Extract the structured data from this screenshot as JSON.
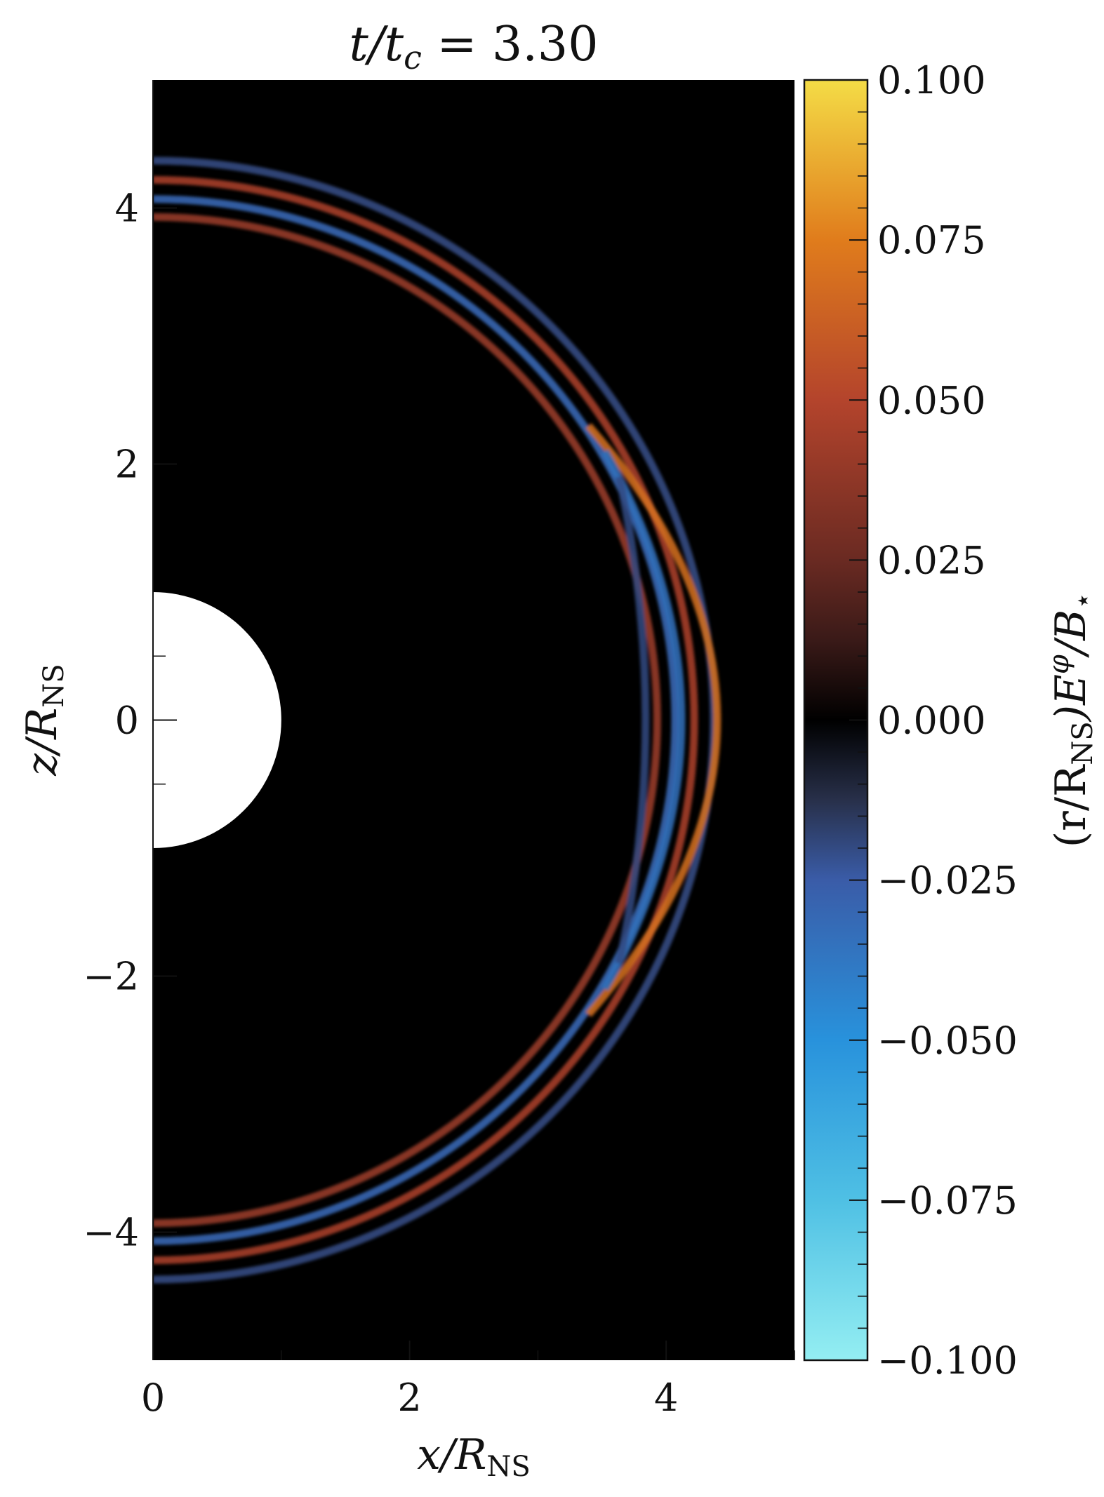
{
  "chart_data": {
    "type": "heatmap",
    "title": "t/t_c = 3.30",
    "title_parts": {
      "lhs": "t/t",
      "sub": "c",
      "rhs": " = 3.30"
    },
    "xlabel": "x/R_NS",
    "xlabel_parts": {
      "var": "x/R",
      "sub": "NS"
    },
    "ylabel": "z/R_NS",
    "ylabel_parts": {
      "var": "z/R",
      "sub": "NS"
    },
    "xlim": [
      0,
      5
    ],
    "ylim": [
      -5,
      5
    ],
    "xticks": [
      0,
      2,
      4
    ],
    "xtick_labels": [
      "0",
      "2",
      "4"
    ],
    "yticks": [
      4,
      2,
      0,
      -2,
      -4
    ],
    "ytick_labels": [
      "4",
      "2",
      "0",
      "−2",
      "−4"
    ],
    "star": {
      "radius": 1.0,
      "color": "#ffffff"
    },
    "colorbar": {
      "label": "(r/R_NS) E^φ / B_⋆",
      "label_parts": {
        "open": "(r/R",
        "sub": "NS",
        "mid": ")E",
        "sup": "φ",
        "end": "/B",
        "sub2": "⋆"
      },
      "range": [
        -0.1,
        0.1
      ],
      "ticks": [
        0.1,
        0.075,
        0.05,
        0.025,
        0.0,
        -0.025,
        -0.05,
        -0.075,
        -0.1
      ],
      "tick_labels": [
        "0.100",
        "0.075",
        "0.050",
        "0.025",
        "0.000",
        "−0.025",
        "−0.050",
        "−0.075",
        "−0.100"
      ],
      "colormap": [
        {
          "v": -0.1,
          "color": "#94eef2"
        },
        {
          "v": -0.075,
          "color": "#4fc0e4"
        },
        {
          "v": -0.05,
          "color": "#2892dc"
        },
        {
          "v": -0.025,
          "color": "#3a5ca8"
        },
        {
          "v": -0.0125,
          "color": "#28304a"
        },
        {
          "v": 0.0,
          "color": "#000000"
        },
        {
          "v": 0.0125,
          "color": "#3a1a18"
        },
        {
          "v": 0.025,
          "color": "#6a2a22"
        },
        {
          "v": 0.05,
          "color": "#b4442c"
        },
        {
          "v": 0.075,
          "color": "#e07c1c"
        },
        {
          "v": 0.1,
          "color": "#f4dc46"
        }
      ]
    },
    "wavefronts": [
      {
        "radius": 4.37,
        "value": -0.02,
        "width": 0.06
      },
      {
        "radius": 4.22,
        "value": 0.045,
        "width": 0.06
      },
      {
        "radius": 4.07,
        "value": -0.03,
        "width": 0.06
      },
      {
        "radius": 3.93,
        "value": 0.04,
        "width": 0.06
      }
    ],
    "equatorial_bulge": [
      {
        "name": "outer-orange",
        "x_max": 4.45,
        "z_half": 2.3,
        "value": 0.07
      },
      {
        "name": "middle-blue",
        "x_max": 4.15,
        "z_half": 2.1,
        "value": -0.035
      },
      {
        "name": "inner-blue",
        "x_max": 3.85,
        "z_half": 1.9,
        "value": -0.02
      }
    ]
  }
}
